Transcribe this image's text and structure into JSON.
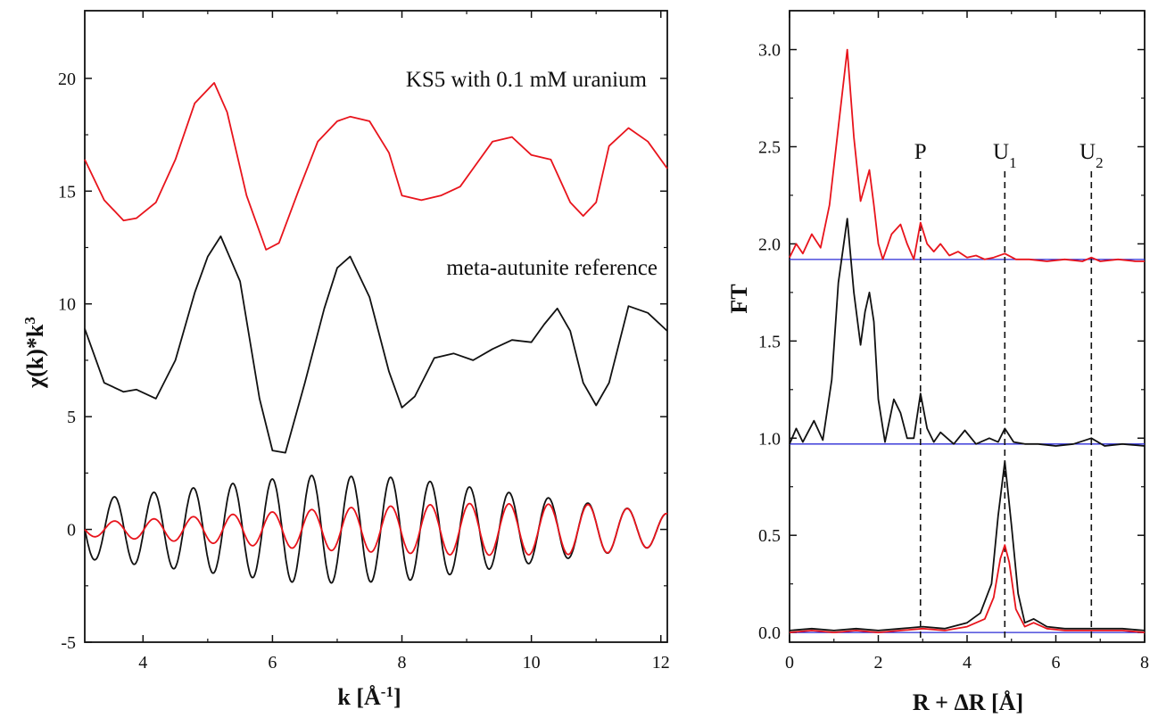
{
  "chart_data": [
    {
      "type": "line",
      "xlabel": "k [Å^-1]",
      "ylabel": "χ(k)*k^3",
      "xlim": [
        3.1,
        12.1
      ],
      "ylim": [
        -5,
        23
      ],
      "x_ticks": [
        4,
        6,
        8,
        10,
        12
      ],
      "y_ticks": [
        -5,
        0,
        5,
        10,
        15,
        20
      ],
      "grid": false,
      "annotations": [
        {
          "text": "KS5 with 0.1 mM uranium",
          "color": "#e8141c"
        },
        {
          "text": "meta-autunite reference",
          "color": "#111111"
        }
      ],
      "series": [
        {
          "color": "#e8141c",
          "x": [
            3.1,
            3.4,
            3.7,
            3.9,
            4.2,
            4.5,
            4.8,
            5.1,
            5.3,
            5.6,
            5.9,
            6.1,
            6.4,
            6.7,
            7.0,
            7.2,
            7.5,
            7.8,
            8.0,
            8.3,
            8.6,
            8.9,
            9.1,
            9.4,
            9.7,
            10.0,
            10.3,
            10.6,
            10.8,
            11.0,
            11.2,
            11.5,
            11.8,
            12.1
          ],
          "y": [
            16.4,
            14.6,
            13.7,
            13.8,
            14.5,
            16.4,
            18.9,
            19.8,
            18.5,
            14.8,
            12.4,
            12.7,
            15.0,
            17.2,
            18.1,
            18.3,
            18.1,
            16.7,
            14.8,
            14.6,
            14.8,
            15.2,
            16.0,
            17.2,
            17.4,
            16.6,
            16.4,
            14.5,
            13.9,
            14.5,
            17.0,
            17.8,
            17.2,
            16.0
          ]
        },
        {
          "color": "#111111",
          "x": [
            3.1,
            3.4,
            3.7,
            3.9,
            4.2,
            4.5,
            4.8,
            5.0,
            5.2,
            5.5,
            5.8,
            6.0,
            6.2,
            6.5,
            6.8,
            7.0,
            7.2,
            7.5,
            7.8,
            8.0,
            8.2,
            8.5,
            8.8,
            9.1,
            9.4,
            9.7,
            10.0,
            10.2,
            10.4,
            10.6,
            10.8,
            11.0,
            11.2,
            11.5,
            11.8,
            12.1
          ],
          "y": [
            8.9,
            6.5,
            6.1,
            6.2,
            5.8,
            7.5,
            10.5,
            12.1,
            13.0,
            11.0,
            5.8,
            3.5,
            3.4,
            6.5,
            9.8,
            11.6,
            12.1,
            10.3,
            7.0,
            5.4,
            5.9,
            7.6,
            7.8,
            7.5,
            8.0,
            8.4,
            8.3,
            9.1,
            9.8,
            8.8,
            6.5,
            5.5,
            6.5,
            9.9,
            9.6,
            8.8
          ]
        },
        {
          "color": "#111111",
          "x_start": 3.1,
          "x_end": 12.1,
          "frequency": 1.64,
          "phase": 0.0,
          "amplitude_profile": [
            [
              3.1,
              1.3
            ],
            [
              6.5,
              2.4
            ],
            [
              8.0,
              2.3
            ],
            [
              10.0,
              1.5
            ],
            [
              12.1,
              0.7
            ]
          ]
        },
        {
          "color": "#e8141c",
          "x_start": 3.1,
          "x_end": 12.1,
          "frequency": 1.64,
          "phase": 0.0,
          "amplitude_profile": [
            [
              3.1,
              0.3
            ],
            [
              5.0,
              0.6
            ],
            [
              7.0,
              0.95
            ],
            [
              9.0,
              1.15
            ],
            [
              11.0,
              1.1
            ],
            [
              12.1,
              0.7
            ]
          ]
        }
      ]
    },
    {
      "type": "line",
      "xlabel": "R + ΔR [Å]",
      "ylabel": "FT",
      "xlim": [
        0,
        8
      ],
      "ylim": [
        -0.05,
        3.2
      ],
      "x_ticks": [
        0,
        2,
        4,
        6,
        8
      ],
      "y_ticks": [
        0.0,
        0.5,
        1.0,
        1.5,
        2.0,
        2.5,
        3.0
      ],
      "grid": false,
      "baselines": [
        {
          "y": 1.92,
          "color": "#2b2bd6"
        },
        {
          "y": 0.97,
          "color": "#2b2bd6"
        },
        {
          "y": 0.0,
          "color": "#2b2bd6"
        }
      ],
      "reference_lines": [
        {
          "x": 2.95,
          "label": "P"
        },
        {
          "x": 4.85,
          "label": "U",
          "subscript": "1"
        },
        {
          "x": 6.8,
          "label": "U",
          "subscript": "2"
        }
      ],
      "series": [
        {
          "color": "#e8141c",
          "x": [
            0.0,
            0.15,
            0.3,
            0.5,
            0.7,
            0.9,
            1.1,
            1.3,
            1.45,
            1.6,
            1.7,
            1.8,
            1.9,
            2.0,
            2.1,
            2.3,
            2.5,
            2.65,
            2.8,
            2.95,
            3.1,
            3.25,
            3.4,
            3.6,
            3.8,
            4.0,
            4.2,
            4.4,
            4.6,
            4.85,
            5.1,
            5.4,
            5.8,
            6.2,
            6.6,
            6.8,
            7.0,
            7.4,
            7.8,
            8.0
          ],
          "y": [
            1.93,
            2.0,
            1.95,
            2.05,
            1.98,
            2.2,
            2.6,
            3.0,
            2.55,
            2.22,
            2.3,
            2.38,
            2.2,
            2.0,
            1.92,
            2.05,
            2.1,
            2.0,
            1.92,
            2.11,
            2.0,
            1.96,
            2.0,
            1.94,
            1.96,
            1.93,
            1.94,
            1.92,
            1.93,
            1.95,
            1.92,
            1.92,
            1.91,
            1.92,
            1.91,
            1.93,
            1.91,
            1.92,
            1.91,
            1.91
          ]
        },
        {
          "color": "#111111",
          "x": [
            0.0,
            0.15,
            0.3,
            0.55,
            0.75,
            0.95,
            1.1,
            1.3,
            1.45,
            1.6,
            1.7,
            1.8,
            1.9,
            2.0,
            2.15,
            2.35,
            2.5,
            2.65,
            2.8,
            2.95,
            3.1,
            3.25,
            3.4,
            3.7,
            3.95,
            4.2,
            4.5,
            4.7,
            4.85,
            5.05,
            5.3,
            5.6,
            6.0,
            6.4,
            6.8,
            7.1,
            7.5,
            8.0
          ],
          "y": [
            0.97,
            1.05,
            0.98,
            1.09,
            0.99,
            1.3,
            1.8,
            2.13,
            1.75,
            1.48,
            1.65,
            1.75,
            1.6,
            1.2,
            0.98,
            1.2,
            1.13,
            1.0,
            1.0,
            1.23,
            1.05,
            0.98,
            1.03,
            0.97,
            1.04,
            0.97,
            1.0,
            0.98,
            1.05,
            0.98,
            0.97,
            0.97,
            0.96,
            0.97,
            1.0,
            0.96,
            0.97,
            0.96
          ]
        },
        {
          "color": "#111111",
          "x": [
            0.0,
            0.5,
            1.0,
            1.5,
            2.0,
            2.5,
            3.0,
            3.5,
            4.0,
            4.3,
            4.55,
            4.7,
            4.85,
            5.0,
            5.15,
            5.3,
            5.5,
            5.8,
            6.2,
            6.6,
            7.0,
            7.5,
            8.0
          ],
          "y": [
            0.01,
            0.02,
            0.01,
            0.02,
            0.01,
            0.02,
            0.03,
            0.02,
            0.05,
            0.1,
            0.25,
            0.6,
            0.88,
            0.55,
            0.2,
            0.05,
            0.07,
            0.03,
            0.02,
            0.02,
            0.02,
            0.02,
            0.01
          ]
        },
        {
          "color": "#e8141c",
          "x": [
            0.0,
            0.5,
            1.0,
            1.5,
            2.0,
            2.5,
            3.0,
            3.5,
            4.0,
            4.4,
            4.6,
            4.75,
            4.85,
            4.95,
            5.1,
            5.3,
            5.5,
            5.8,
            6.2,
            6.6,
            7.0,
            7.5,
            8.0
          ],
          "y": [
            0.0,
            0.01,
            0.0,
            0.01,
            0.0,
            0.01,
            0.02,
            0.01,
            0.03,
            0.07,
            0.18,
            0.38,
            0.45,
            0.36,
            0.12,
            0.03,
            0.05,
            0.02,
            0.01,
            0.01,
            0.01,
            0.01,
            0.0
          ]
        }
      ]
    }
  ]
}
